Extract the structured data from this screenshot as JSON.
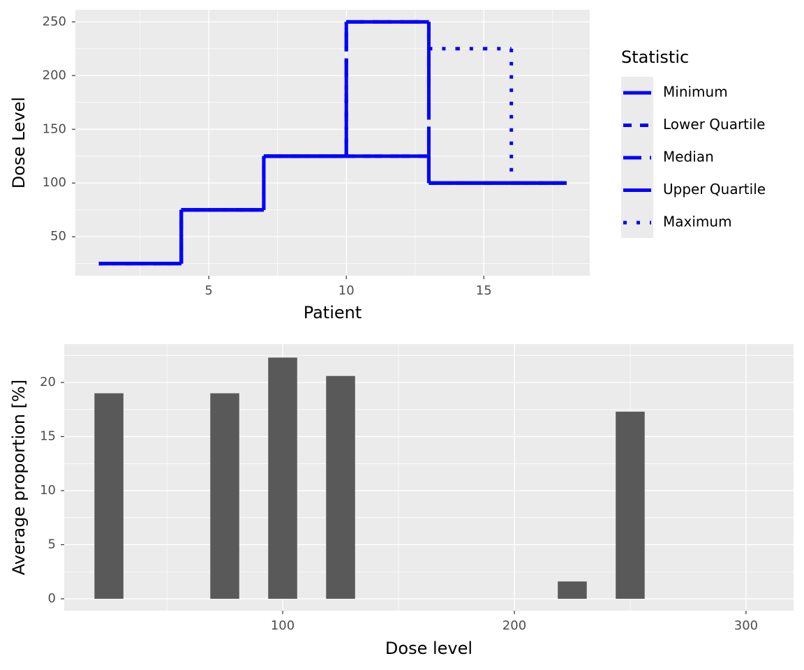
{
  "chart_data": [
    {
      "type": "step",
      "xlabel": "Patient",
      "ylabel": "Dose Level",
      "x": [
        1,
        2,
        3,
        4,
        5,
        6,
        7,
        8,
        9,
        10,
        11,
        12,
        13,
        14,
        15,
        16,
        17,
        18
      ],
      "series": [
        {
          "name": "Minimum",
          "color": "#0000FF",
          "linetype": "solid",
          "values": [
            25,
            25,
            25,
            75,
            75,
            75,
            125,
            125,
            125,
            125,
            125,
            125,
            100,
            100,
            100,
            100,
            100,
            100
          ]
        },
        {
          "name": "Lower Quartile",
          "color": "#0000FF",
          "linetype": "dashed",
          "values": [
            25,
            25,
            25,
            75,
            75,
            75,
            125,
            125,
            125,
            125,
            125,
            125,
            100,
            100,
            100,
            100,
            100,
            100
          ]
        },
        {
          "name": "Median",
          "color": "#0000FF",
          "linetype": "longdash",
          "values": [
            25,
            25,
            25,
            75,
            75,
            75,
            125,
            125,
            125,
            250,
            250,
            250,
            100,
            100,
            100,
            100,
            100,
            100
          ]
        },
        {
          "name": "Upper Quartile",
          "color": "#0000FF",
          "linetype": "twodash",
          "values": [
            25,
            25,
            25,
            75,
            75,
            75,
            125,
            125,
            125,
            250,
            250,
            250,
            100,
            100,
            100,
            100,
            100,
            100
          ]
        },
        {
          "name": "Maximum",
          "color": "#0000FF",
          "linetype": "dotted",
          "values": [
            25,
            25,
            25,
            75,
            75,
            75,
            125,
            125,
            125,
            250,
            250,
            250,
            225,
            225,
            225,
            100,
            100,
            100
          ]
        }
      ],
      "xlim": [
        0.15,
        18.85
      ],
      "ylim": [
        13.75,
        261.25
      ],
      "xticks": [
        5,
        10,
        15
      ],
      "yticks": [
        50,
        100,
        150,
        200,
        250
      ],
      "xminor": [
        2.5,
        7.5,
        12.5,
        17.5
      ],
      "yminor": [
        25,
        75,
        125,
        175,
        225
      ],
      "grid": true,
      "legend": {
        "title": "Statistic",
        "position": "right"
      }
    },
    {
      "type": "bar",
      "xlabel": "Dose level",
      "ylabel": "Average proportion [%]",
      "x": [
        25,
        75,
        100,
        125,
        225,
        250
      ],
      "values": [
        19.0,
        19.0,
        22.3,
        20.6,
        1.6,
        17.3
      ],
      "color": "#595959",
      "xlim": [
        5.7,
        320.5
      ],
      "ylim": [
        -1.1,
        23.55
      ],
      "xticks": [
        100,
        200,
        300
      ],
      "yticks": [
        0,
        5,
        10,
        15,
        20
      ],
      "xminor": [
        50,
        150,
        250
      ],
      "yminor": [
        2.5,
        7.5,
        12.5,
        17.5,
        22.5
      ],
      "grid": true
    }
  ]
}
